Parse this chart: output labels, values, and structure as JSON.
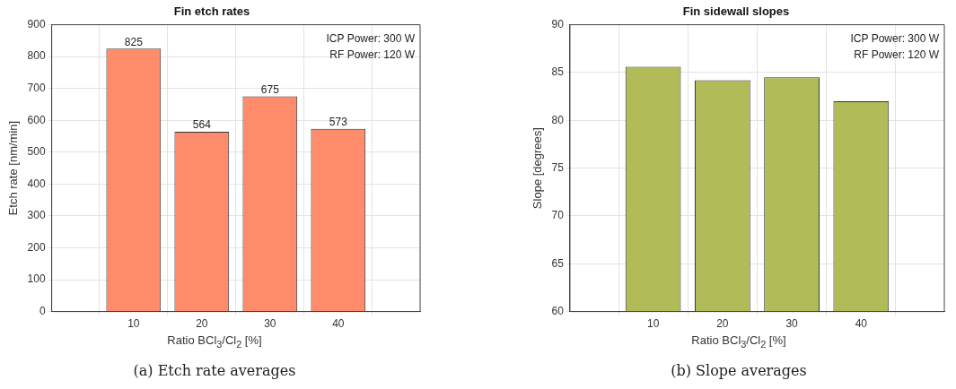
{
  "chart_data": [
    {
      "type": "bar",
      "title": "Fin etch rates",
      "xlabel": "Ratio BCl$_{3}$/Cl$_{2}$ [%]",
      "ylabel": "Etch rate [nm/min]",
      "x": [
        10,
        20,
        30,
        40
      ],
      "values": [
        825,
        564,
        675,
        573
      ],
      "color": "#fe8b6a",
      "xlim": [
        -2,
        52
      ],
      "xticks": [
        10,
        20,
        30,
        40
      ],
      "ylim": [
        0,
        900
      ],
      "yticks": [
        0,
        100,
        200,
        300,
        400,
        500,
        600,
        700,
        800,
        900
      ],
      "grid": true,
      "data_labels": true,
      "annotations": [
        "ICP Power: 300 W",
        "RF Power: 120 W",
        "(a) Etch rate averages"
      ]
    },
    {
      "type": "bar",
      "title": "Fin sidewall slopes",
      "xlabel": "Ratio BCl$_{3}$/Cl$_{2}$ [%]",
      "ylabel": "Slope [degrees]",
      "x": [
        10,
        20,
        30,
        40
      ],
      "values": [
        85.6,
        84.2,
        84.5,
        82.0
      ],
      "color": "#b1bc58",
      "xlim": [
        -2,
        52
      ],
      "xticks": [
        10,
        20,
        30,
        40
      ],
      "ylim": [
        60,
        90
      ],
      "yticks": [
        60,
        65,
        70,
        75,
        80,
        85,
        90
      ],
      "grid": true,
      "annotations": [
        "ICP Power: 300 W",
        "RF Power: 120 W",
        "(b) Slope averages"
      ]
    }
  ]
}
